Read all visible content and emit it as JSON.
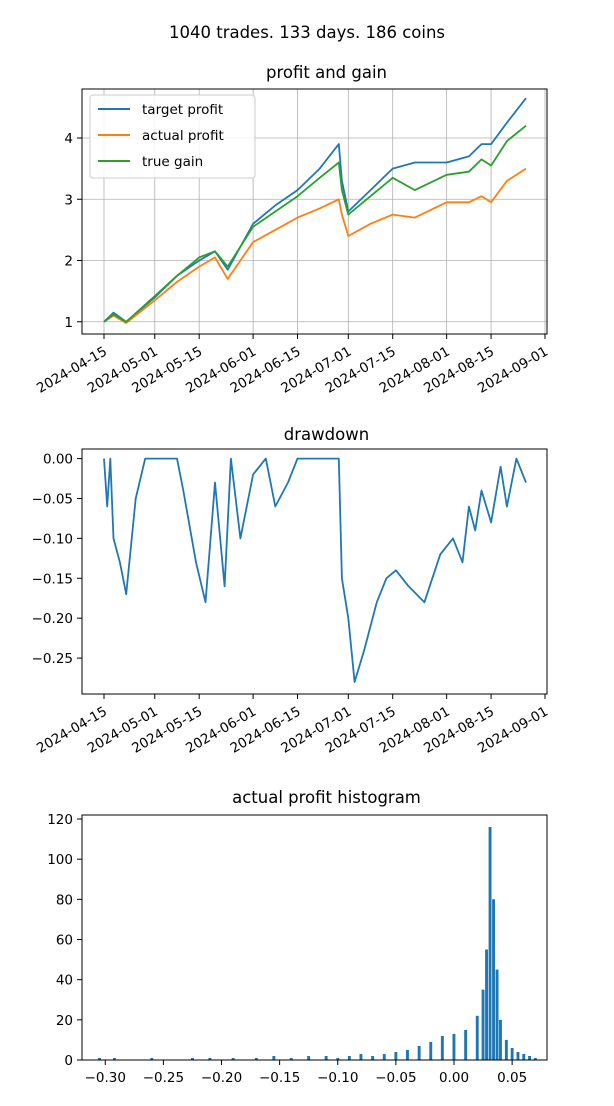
{
  "suptitle": "1040 trades. 133 days. 186 coins",
  "colors": {
    "series1": "#1f77b4",
    "series2": "#ff7f0e",
    "series3": "#2ca02c",
    "grid": "#b0b0b0"
  },
  "chart_data": [
    {
      "type": "line",
      "title": "profit and gain",
      "xlabel": "",
      "ylabel": "",
      "x_ticks": [
        "2024-04-15",
        "2024-05-01",
        "2024-05-15",
        "2024-06-01",
        "2024-06-15",
        "2024-07-01",
        "2024-07-15",
        "2024-08-01",
        "2024-08-15",
        "2024-09-01"
      ],
      "y_ticks": [
        1,
        2,
        3,
        4
      ],
      "xlim": [
        "2024-04-15",
        "2024-09-01"
      ],
      "ylim": [
        0.8,
        4.8
      ],
      "grid": true,
      "legend": "upper left",
      "series": [
        {
          "name": "target profit",
          "color": "#1f77b4",
          "x": [
            "2024-04-15",
            "2024-04-18",
            "2024-04-22",
            "2024-05-01",
            "2024-05-08",
            "2024-05-15",
            "2024-05-20",
            "2024-05-24",
            "2024-06-01",
            "2024-06-08",
            "2024-06-15",
            "2024-06-22",
            "2024-06-28",
            "2024-06-29",
            "2024-07-01",
            "2024-07-08",
            "2024-07-15",
            "2024-07-22",
            "2024-08-01",
            "2024-08-08",
            "2024-08-12",
            "2024-08-15",
            "2024-08-20",
            "2024-08-26"
          ],
          "y": [
            1.0,
            1.15,
            1.0,
            1.4,
            1.75,
            2.0,
            2.15,
            1.85,
            2.6,
            2.9,
            3.15,
            3.5,
            3.9,
            3.3,
            2.8,
            3.15,
            3.5,
            3.6,
            3.6,
            3.7,
            3.9,
            3.9,
            4.25,
            4.65
          ]
        },
        {
          "name": "actual profit",
          "color": "#ff7f0e",
          "x": [
            "2024-04-15",
            "2024-04-18",
            "2024-04-22",
            "2024-05-01",
            "2024-05-08",
            "2024-05-15",
            "2024-05-20",
            "2024-05-24",
            "2024-06-01",
            "2024-06-08",
            "2024-06-15",
            "2024-06-22",
            "2024-06-28",
            "2024-06-29",
            "2024-07-01",
            "2024-07-08",
            "2024-07-15",
            "2024-07-22",
            "2024-08-01",
            "2024-08-08",
            "2024-08-12",
            "2024-08-15",
            "2024-08-20",
            "2024-08-26"
          ],
          "y": [
            1.0,
            1.1,
            0.98,
            1.35,
            1.65,
            1.9,
            2.05,
            1.7,
            2.3,
            2.5,
            2.7,
            2.85,
            3.0,
            2.75,
            2.4,
            2.6,
            2.75,
            2.7,
            2.95,
            2.95,
            3.05,
            2.95,
            3.3,
            3.5
          ]
        },
        {
          "name": "true gain",
          "color": "#2ca02c",
          "x": [
            "2024-04-15",
            "2024-04-18",
            "2024-04-22",
            "2024-05-01",
            "2024-05-08",
            "2024-05-15",
            "2024-05-20",
            "2024-05-24",
            "2024-06-01",
            "2024-06-08",
            "2024-06-15",
            "2024-06-22",
            "2024-06-28",
            "2024-06-29",
            "2024-07-01",
            "2024-07-08",
            "2024-07-15",
            "2024-07-22",
            "2024-08-01",
            "2024-08-08",
            "2024-08-12",
            "2024-08-15",
            "2024-08-20",
            "2024-08-26"
          ],
          "y": [
            1.0,
            1.12,
            1.0,
            1.42,
            1.75,
            2.05,
            2.15,
            1.9,
            2.55,
            2.8,
            3.05,
            3.35,
            3.6,
            3.15,
            2.75,
            3.05,
            3.35,
            3.15,
            3.4,
            3.45,
            3.65,
            3.55,
            3.95,
            4.2
          ]
        }
      ]
    },
    {
      "type": "line",
      "title": "drawdown",
      "xlabel": "",
      "ylabel": "",
      "x_ticks": [
        "2024-04-15",
        "2024-05-01",
        "2024-05-15",
        "2024-06-01",
        "2024-06-15",
        "2024-07-01",
        "2024-07-15",
        "2024-08-01",
        "2024-08-15",
        "2024-09-01"
      ],
      "y_ticks": [
        0.0,
        -0.05,
        -0.1,
        -0.15,
        -0.2,
        -0.25
      ],
      "xlim": [
        "2024-04-15",
        "2024-09-01"
      ],
      "ylim": [
        -0.295,
        0.012
      ],
      "grid": false,
      "series": [
        {
          "color": "#1f77b4",
          "x": [
            "2024-04-15",
            "2024-04-16",
            "2024-04-17",
            "2024-04-18",
            "2024-04-20",
            "2024-04-22",
            "2024-04-25",
            "2024-04-28",
            "2024-05-01",
            "2024-05-08",
            "2024-05-10",
            "2024-05-14",
            "2024-05-17",
            "2024-05-20",
            "2024-05-23",
            "2024-05-25",
            "2024-05-28",
            "2024-06-01",
            "2024-06-05",
            "2024-06-08",
            "2024-06-12",
            "2024-06-15",
            "2024-06-20",
            "2024-06-25",
            "2024-06-28",
            "2024-06-29",
            "2024-07-01",
            "2024-07-03",
            "2024-07-06",
            "2024-07-10",
            "2024-07-13",
            "2024-07-16",
            "2024-07-20",
            "2024-07-25",
            "2024-07-30",
            "2024-08-03",
            "2024-08-06",
            "2024-08-08",
            "2024-08-10",
            "2024-08-12",
            "2024-08-15",
            "2024-08-18",
            "2024-08-20",
            "2024-08-23",
            "2024-08-26"
          ],
          "y": [
            0.0,
            -0.06,
            0.0,
            -0.1,
            -0.13,
            -0.17,
            -0.05,
            0.0,
            0.0,
            0.0,
            -0.04,
            -0.13,
            -0.18,
            -0.03,
            -0.16,
            0.0,
            -0.1,
            -0.02,
            0.0,
            -0.06,
            -0.03,
            0.0,
            0.0,
            0.0,
            0.0,
            -0.15,
            -0.2,
            -0.28,
            -0.24,
            -0.18,
            -0.15,
            -0.14,
            -0.16,
            -0.18,
            -0.12,
            -0.1,
            -0.13,
            -0.06,
            -0.09,
            -0.04,
            -0.08,
            -0.01,
            -0.06,
            0.0,
            -0.03
          ]
        }
      ]
    },
    {
      "type": "bar",
      "title": "actual profit histogram",
      "xlabel": "",
      "ylabel": "",
      "x_ticks": [
        -0.3,
        -0.25,
        -0.2,
        -0.15,
        -0.1,
        -0.05,
        0.0,
        0.05
      ],
      "y_ticks": [
        0,
        20,
        40,
        60,
        80,
        100,
        120
      ],
      "xlim": [
        -0.32,
        0.08
      ],
      "ylim": [
        0,
        122
      ],
      "grid": false,
      "bins": [
        {
          "x": -0.305,
          "count": 1
        },
        {
          "x": -0.292,
          "count": 1
        },
        {
          "x": -0.26,
          "count": 1
        },
        {
          "x": -0.225,
          "count": 1
        },
        {
          "x": -0.21,
          "count": 1
        },
        {
          "x": -0.19,
          "count": 1
        },
        {
          "x": -0.17,
          "count": 1
        },
        {
          "x": -0.155,
          "count": 2
        },
        {
          "x": -0.14,
          "count": 1
        },
        {
          "x": -0.125,
          "count": 2
        },
        {
          "x": -0.11,
          "count": 2
        },
        {
          "x": -0.1,
          "count": 1
        },
        {
          "x": -0.09,
          "count": 2
        },
        {
          "x": -0.08,
          "count": 3
        },
        {
          "x": -0.07,
          "count": 2
        },
        {
          "x": -0.06,
          "count": 3
        },
        {
          "x": -0.05,
          "count": 4
        },
        {
          "x": -0.04,
          "count": 5
        },
        {
          "x": -0.03,
          "count": 7
        },
        {
          "x": -0.02,
          "count": 9
        },
        {
          "x": -0.01,
          "count": 12
        },
        {
          "x": 0.0,
          "count": 13
        },
        {
          "x": 0.01,
          "count": 15
        },
        {
          "x": 0.02,
          "count": 22
        },
        {
          "x": 0.025,
          "count": 35
        },
        {
          "x": 0.028,
          "count": 55
        },
        {
          "x": 0.031,
          "count": 116
        },
        {
          "x": 0.034,
          "count": 80
        },
        {
          "x": 0.037,
          "count": 45
        },
        {
          "x": 0.04,
          "count": 20
        },
        {
          "x": 0.045,
          "count": 10
        },
        {
          "x": 0.05,
          "count": 6
        },
        {
          "x": 0.055,
          "count": 4
        },
        {
          "x": 0.06,
          "count": 3
        },
        {
          "x": 0.065,
          "count": 2
        },
        {
          "x": 0.07,
          "count": 1
        }
      ]
    }
  ]
}
